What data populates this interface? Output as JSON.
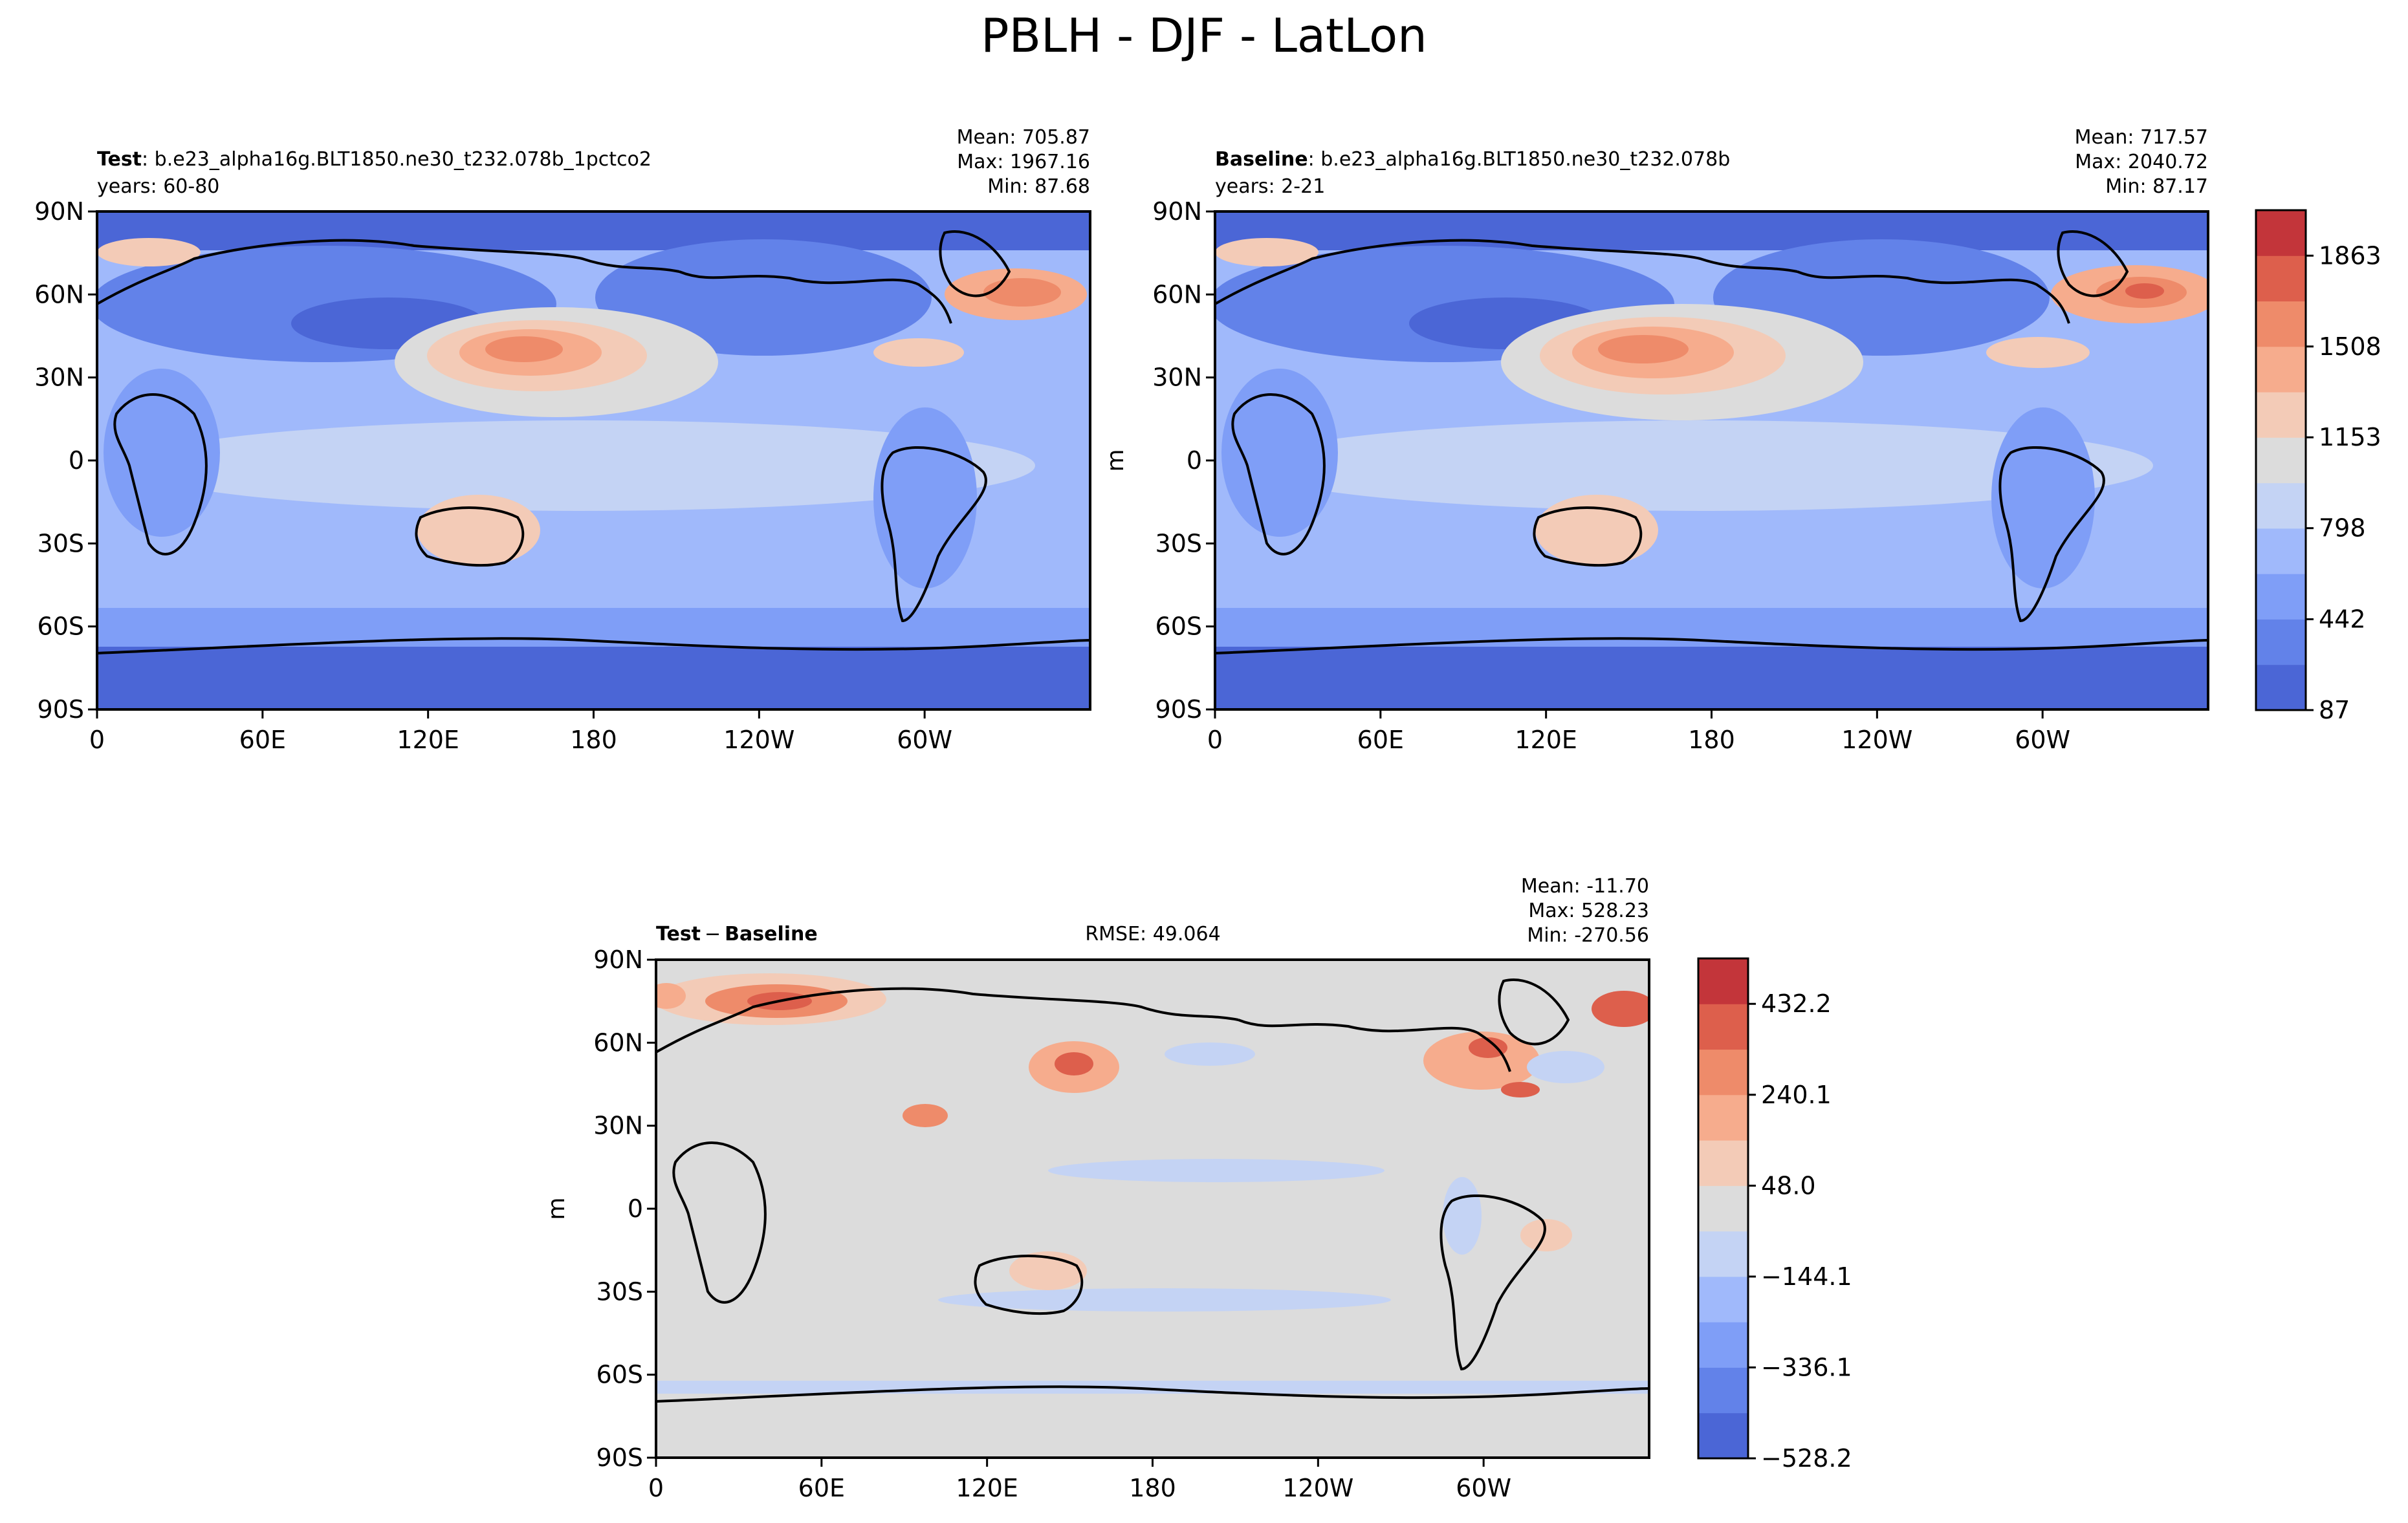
{
  "figure": {
    "suptitle": "PBLH - DJF - LatLon"
  },
  "chart_data": [
    {
      "type": "heatmap",
      "panel": "test",
      "title_bold": "Test",
      "title_rest": ": b.e23_alpha16g.BLT1850.ne30_t232.078b_1pctco2",
      "years": "years: 60-80",
      "stats": [
        "Mean: 705.87",
        "Max: 1967.16",
        "Min: 87.68"
      ],
      "x_ticks": [
        "0",
        "60E",
        "120E",
        "180",
        "120W",
        "60W"
      ],
      "y_ticks": [
        "90N",
        "60N",
        "30N",
        "0",
        "30S",
        "60S",
        "90S"
      ],
      "xlim_lon": [
        0,
        360
      ],
      "ylim_lat": [
        -90,
        90
      ],
      "grid": false
    },
    {
      "type": "heatmap",
      "panel": "baseline",
      "title_bold": "Baseline",
      "title_rest": ": b.e23_alpha16g.BLT1850.ne30_t232.078b",
      "years": "years: 2-21",
      "stats": [
        "Mean: 717.57",
        "Max: 2040.72",
        "Min: 87.17"
      ],
      "x_ticks": [
        "0",
        "60E",
        "120E",
        "180",
        "120W",
        "60W"
      ],
      "y_ticks": [
        "90N",
        "60N",
        "30N",
        "0",
        "30S",
        "60S",
        "90S"
      ],
      "ylabel": "m",
      "xlim_lon": [
        0,
        360
      ],
      "ylim_lat": [
        -90,
        90
      ],
      "colorbar": {
        "ticks": [
          "87",
          "442",
          "798",
          "1153",
          "1508",
          "1863"
        ],
        "tick_values": [
          87,
          442,
          798,
          1153,
          1508,
          1863
        ],
        "range": [
          87,
          2040.72
        ],
        "levels": 11,
        "colormap": "coolwarm"
      },
      "grid": false
    },
    {
      "type": "heatmap",
      "panel": "difference",
      "title_bold_a": "Test",
      "title_op": "−",
      "title_bold_b": "Baseline",
      "rmse": "RMSE: 49.064",
      "stats": [
        "Mean: -11.70",
        "Max: 528.23",
        "Min: -270.56"
      ],
      "x_ticks": [
        "0",
        "60E",
        "120E",
        "180",
        "120W",
        "60W"
      ],
      "y_ticks": [
        "90N",
        "60N",
        "30N",
        "0",
        "30S",
        "60S",
        "90S"
      ],
      "ylabel": "m",
      "xlim_lon": [
        0,
        360
      ],
      "ylim_lat": [
        -90,
        90
      ],
      "colorbar": {
        "ticks": [
          "432.2",
          "240.1",
          "48.0",
          "−144.1",
          "−336.1",
          "−528.2"
        ],
        "tick_values": [
          432.2,
          240.1,
          48.0,
          -144.1,
          -336.1,
          -528.2
        ],
        "range": [
          -528.2,
          528.2
        ],
        "levels": 11,
        "colormap": "coolwarm"
      },
      "grid": false
    }
  ],
  "colors": {
    "levels11": [
      "#4b66d6",
      "#6282e9",
      "#7f9ef7",
      "#a0b9fb",
      "#c4d3f4",
      "#dcdcdc",
      "#f3cbb7",
      "#f6ac8d",
      "#ee8b6a",
      "#dd5f4c",
      "#c3353a"
    ],
    "land": "#000000",
    "frame": "#000000"
  }
}
